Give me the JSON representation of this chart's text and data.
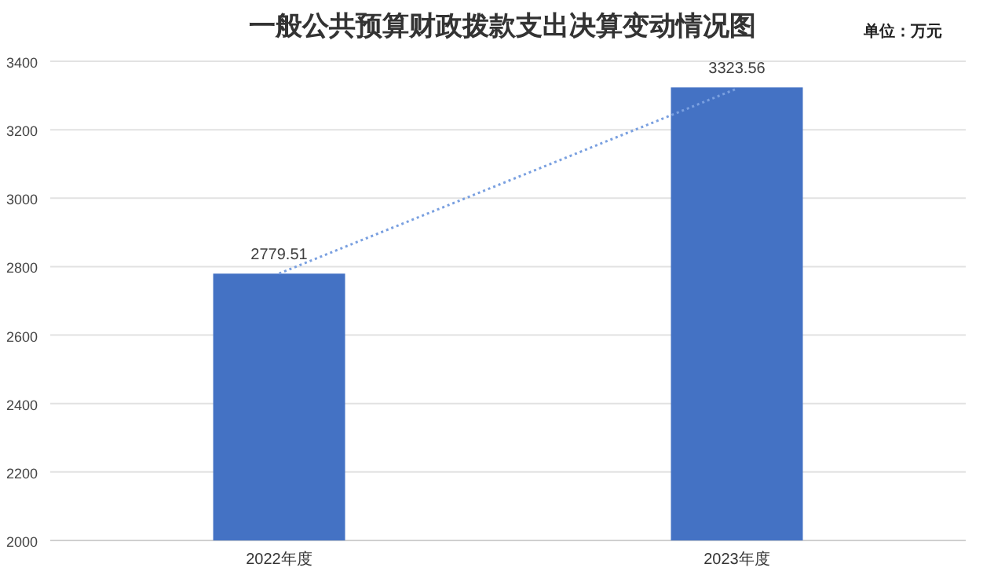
{
  "chart_data": {
    "type": "bar",
    "title": "一般公共预算财政拨款支出决算变动情况图",
    "annotations": [
      "单位：万元"
    ],
    "categories": [
      "2022年度",
      "2023年度"
    ],
    "series": [
      {
        "color": "#4472c4",
        "values": [
          2779.51,
          3323.56
        ],
        "value_labels": [
          "2779.51",
          "3323.56"
        ]
      },
      {
        "type": "line",
        "color": "#7aa0e0",
        "line_style": "dotted",
        "values": [
          2780,
          3320
        ]
      }
    ],
    "ylim": [
      2000,
      3400
    ],
    "yticks": [
      2000,
      2200,
      2400,
      2600,
      2800,
      3000,
      3200,
      3400
    ],
    "grid": "y"
  }
}
